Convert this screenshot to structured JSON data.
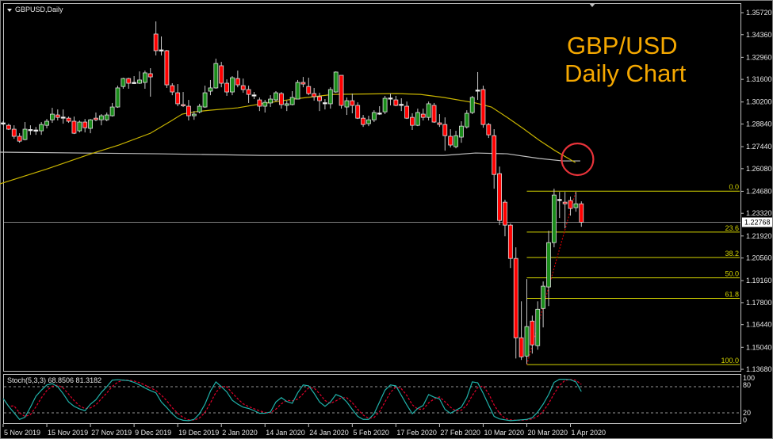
{
  "window": {
    "symbol_label": "GBPUSD,Daily"
  },
  "annotation": {
    "line1": "GBP/USD",
    "line2": "Daily Chart",
    "color": "#f5a800",
    "circle_color": "#e8333a"
  },
  "colors": {
    "bull": "#1a8c1a",
    "bear": "#ff0000",
    "doji": "#ffffff",
    "wick": "#c8c8c8",
    "ma_fast": "#c8b400",
    "ma_slow": "#c0c0c0",
    "fib": "#d4d400",
    "stoch_k": "#20b2aa",
    "stoch_d": "#e0002a"
  },
  "price_axis": {
    "labels": [
      "1.35720",
      "1.34360",
      "1.32960",
      "1.31600",
      "1.30200",
      "1.28840",
      "1.27440",
      "1.26080",
      "1.24680",
      "1.23320",
      "1.21920",
      "1.20560",
      "1.19160",
      "1.17800",
      "1.16440",
      "1.15040",
      "1.13680"
    ],
    "current_price": "1.22768"
  },
  "date_axis": {
    "labels": [
      "5 Nov 2019",
      "15 Nov 2019",
      "27 Nov 2019",
      "9 Dec 2019",
      "19 Dec 2019",
      "2 Jan 2020",
      "14 Jan 2020",
      "24 Jan 2020",
      "5 Feb 2020",
      "17 Feb 2020",
      "27 Feb 2020",
      "10 Mar 2020",
      "20 Mar 2020",
      "1 Apr 2020"
    ],
    "label_bar_index": [
      0,
      8,
      16,
      24,
      32,
      40,
      48,
      56,
      64,
      72,
      80,
      88,
      96,
      104
    ]
  },
  "chart_data": {
    "type": "candlestick",
    "ylim": [
      1.1368,
      1.3572
    ],
    "ohlc_fields": [
      "open",
      "high",
      "low",
      "close"
    ],
    "candles": [
      [
        1.2891,
        1.2901,
        1.2876,
        1.2889
      ],
      [
        1.2876,
        1.2886,
        1.2847,
        1.2852
      ],
      [
        1.2852,
        1.2876,
        1.2793,
        1.2808
      ],
      [
        1.2808,
        1.2827,
        1.2768,
        1.2778
      ],
      [
        1.2788,
        1.2896,
        1.2783,
        1.2852
      ],
      [
        1.285,
        1.2876,
        1.2817,
        1.2847
      ],
      [
        1.2845,
        1.2866,
        1.2817,
        1.2847
      ],
      [
        1.2842,
        1.2896,
        1.2817,
        1.2881
      ],
      [
        1.2876,
        1.2915,
        1.2857,
        1.2901
      ],
      [
        1.291,
        1.2984,
        1.2891,
        1.2945
      ],
      [
        1.294,
        1.2974,
        1.2906,
        1.2925
      ],
      [
        1.2927,
        1.2974,
        1.2886,
        1.2925
      ],
      [
        1.292,
        1.293,
        1.2891,
        1.2901
      ],
      [
        1.2901,
        1.293,
        1.2822,
        1.2827
      ],
      [
        1.2842,
        1.2906,
        1.2832,
        1.2896
      ],
      [
        1.2896,
        1.2915,
        1.2832,
        1.2861
      ],
      [
        1.2857,
        1.2915,
        1.2827,
        1.291
      ],
      [
        1.292,
        1.2955,
        1.2901,
        1.291
      ],
      [
        1.291,
        1.2945,
        1.2876,
        1.2935
      ],
      [
        1.291,
        1.2955,
        1.2901,
        1.294
      ],
      [
        1.2935,
        1.3014,
        1.293,
        1.2989
      ],
      [
        1.2989,
        1.3121,
        1.2984,
        1.3107
      ],
      [
        1.3116,
        1.317,
        1.3102,
        1.3165
      ],
      [
        1.3165,
        1.317,
        1.3102,
        1.3136
      ],
      [
        1.3141,
        1.318,
        1.3131,
        1.3138
      ],
      [
        1.3136,
        1.3209,
        1.3131,
        1.3156
      ],
      [
        1.3141,
        1.3214,
        1.3102,
        1.32
      ],
      [
        1.3195,
        1.3229,
        1.3053,
        1.3175
      ],
      [
        1.344,
        1.3518,
        1.3308,
        1.3337
      ],
      [
        1.334,
        1.3425,
        1.3308,
        1.3342
      ],
      [
        1.3337,
        1.3342,
        1.3107,
        1.3126
      ],
      [
        1.3121,
        1.3136,
        1.3062,
        1.3082
      ],
      [
        1.3077,
        1.3131,
        1.2994,
        1.3009
      ],
      [
        1.3004,
        1.3082,
        1.2989,
        1.2999
      ],
      [
        1.2994,
        1.3033,
        1.2906,
        1.2935
      ],
      [
        1.2935,
        1.2964,
        1.291,
        1.2945
      ],
      [
        1.2959,
        1.3009,
        1.295,
        1.2994
      ],
      [
        1.2989,
        1.3121,
        1.2984,
        1.3077
      ],
      [
        1.3087,
        1.3156,
        1.3062,
        1.3107
      ],
      [
        1.3107,
        1.3288,
        1.3102,
        1.3258
      ],
      [
        1.3244,
        1.3268,
        1.3111,
        1.3136
      ],
      [
        1.3136,
        1.316,
        1.3058,
        1.3082
      ],
      [
        1.3082,
        1.318,
        1.3062,
        1.317
      ],
      [
        1.3165,
        1.3214,
        1.3111,
        1.3126
      ],
      [
        1.3121,
        1.3165,
        1.3077,
        1.3097
      ],
      [
        1.3097,
        1.3121,
        1.3014,
        1.3067
      ],
      [
        1.3064,
        1.3082,
        1.3038,
        1.3062
      ],
      [
        1.3033,
        1.3048,
        1.2964,
        1.2994
      ],
      [
        1.2994,
        1.3033,
        1.2955,
        1.3018
      ],
      [
        1.3014,
        1.3062,
        1.2989,
        1.3038
      ],
      [
        1.3033,
        1.3087,
        1.3023,
        1.3077
      ],
      [
        1.3072,
        1.3082,
        1.2979,
        1.3004
      ],
      [
        1.2999,
        1.3028,
        1.2964,
        1.3009
      ],
      [
        1.3004,
        1.3087,
        1.2999,
        1.3048
      ],
      [
        1.3038,
        1.3156,
        1.3038,
        1.3141
      ],
      [
        1.3141,
        1.3175,
        1.3111,
        1.3131
      ],
      [
        1.3116,
        1.317,
        1.3062,
        1.3072
      ],
      [
        1.3072,
        1.3107,
        1.3028,
        1.3053
      ],
      [
        1.3053,
        1.3077,
        1.2964,
        1.3028
      ],
      [
        1.3016,
        1.3038,
        1.2974,
        1.3014
      ],
      [
        1.3009,
        1.3111,
        1.2979,
        1.3097
      ],
      [
        1.3082,
        1.3209,
        1.3077,
        1.3205
      ],
      [
        1.3185,
        1.3185,
        1.2979,
        1.2999
      ],
      [
        1.2989,
        1.3048,
        1.294,
        1.3028
      ],
      [
        1.3028,
        1.3072,
        1.295,
        1.2999
      ],
      [
        1.2999,
        1.3018,
        1.2915,
        1.292
      ],
      [
        1.292,
        1.294,
        1.2866,
        1.2881
      ],
      [
        1.2886,
        1.2935,
        1.2871,
        1.291
      ],
      [
        1.291,
        1.2969,
        1.2896,
        1.2955
      ],
      [
        1.2952,
        1.2994,
        1.294,
        1.295
      ],
      [
        1.2959,
        1.3058,
        1.2945,
        1.3043
      ],
      [
        1.3045,
        1.3072,
        1.2999,
        1.3043
      ],
      [
        1.3033,
        1.3058,
        1.2994,
        1.2999
      ],
      [
        1.3006,
        1.3043,
        1.2964,
        1.3004
      ],
      [
        1.2994,
        1.3023,
        1.2915,
        1.292
      ],
      [
        1.2925,
        1.295,
        1.2847,
        1.2876
      ],
      [
        1.2876,
        1.2979,
        1.2871,
        1.2955
      ],
      [
        1.2945,
        1.2979,
        1.2906,
        1.2925
      ],
      [
        1.2925,
        1.3023,
        1.2906,
        1.3009
      ],
      [
        1.2999,
        1.3014,
        1.2891,
        1.2896
      ],
      [
        1.2891,
        1.2945,
        1.2866,
        1.2881
      ],
      [
        1.2881,
        1.2925,
        1.2719,
        1.2812
      ],
      [
        1.2808,
        1.2852,
        1.2739,
        1.2754
      ],
      [
        1.2744,
        1.2842,
        1.2734,
        1.2812
      ],
      [
        1.2803,
        1.2901,
        1.2768,
        1.2871
      ],
      [
        1.2866,
        1.2969,
        1.2856,
        1.295
      ],
      [
        1.2955,
        1.3058,
        1.2945,
        1.3048
      ],
      [
        1.3094,
        1.3205,
        1.3033,
        1.3092
      ],
      [
        1.3097,
        1.3121,
        1.2861,
        1.2881
      ],
      [
        1.2881,
        1.2891,
        1.2798,
        1.2817
      ],
      [
        1.2812,
        1.2852,
        1.2484,
        1.2572
      ],
      [
        1.2577,
        1.2621,
        1.2259,
        1.2288
      ],
      [
        1.2401,
        1.2416,
        1.219,
        1.2259
      ],
      [
        1.2259,
        1.2269,
        1.1994,
        1.2053
      ],
      [
        1.2053,
        1.2122,
        1.1435,
        1.1563
      ],
      [
        1.1563,
        1.1788,
        1.1426,
        1.1445
      ],
      [
        1.145,
        1.1926,
        1.1401,
        1.1632
      ],
      [
        1.1666,
        1.17,
        1.1465,
        1.1519
      ],
      [
        1.1514,
        1.1788,
        1.1489,
        1.1739
      ],
      [
        1.1744,
        1.1911,
        1.1627,
        1.1882
      ],
      [
        1.1877,
        1.2224,
        1.1759,
        1.2151
      ],
      [
        1.2151,
        1.2484,
        1.2122,
        1.2445
      ],
      [
        1.2418,
        1.2464,
        1.2303,
        1.2416
      ],
      [
        1.2401,
        1.2464,
        1.2239,
        1.2391
      ],
      [
        1.2411,
        1.2435,
        1.2318,
        1.2362
      ],
      [
        1.2367,
        1.2464,
        1.2342,
        1.2391
      ],
      [
        1.2391,
        1.2406,
        1.2249,
        1.2277
      ]
    ],
    "ma_fast_points": [
      [
        -0.6,
        1.2514
      ],
      [
        8.1,
        1.2607
      ],
      [
        16.1,
        1.27
      ],
      [
        21.2,
        1.2754
      ],
      [
        27,
        1.2827
      ],
      [
        30.7,
        1.2901
      ],
      [
        32.8,
        1.2945
      ],
      [
        35,
        1.2959
      ],
      [
        37.9,
        1.2969
      ],
      [
        43,
        1.2984
      ],
      [
        47.4,
        1.3009
      ],
      [
        53.2,
        1.3038
      ],
      [
        60.5,
        1.3067
      ],
      [
        72.1,
        1.3072
      ],
      [
        76.5,
        1.3067
      ],
      [
        80.8,
        1.3048
      ],
      [
        86.6,
        1.3014
      ],
      [
        89.5,
        1.2989
      ],
      [
        92.4,
        1.2925
      ],
      [
        95.3,
        1.2857
      ],
      [
        98.3,
        1.2783
      ],
      [
        101.2,
        1.2719
      ],
      [
        104.9,
        1.2646
      ]
    ],
    "ma_slow_points": [
      [
        -0.6,
        1.271
      ],
      [
        14,
        1.2705
      ],
      [
        28.5,
        1.27
      ],
      [
        47.4,
        1.269
      ],
      [
        64.8,
        1.269
      ],
      [
        80.8,
        1.269
      ],
      [
        86.6,
        1.2705
      ],
      [
        92.4,
        1.27
      ],
      [
        98.3,
        1.2671
      ],
      [
        102.6,
        1.2656
      ],
      [
        105.8,
        1.2656
      ]
    ],
    "fibonacci": {
      "high": 1.2469,
      "low": 1.1397,
      "start_bar": 96,
      "trend_from_bar": 96,
      "trend_to_bar": 105,
      "levels": [
        0.0,
        23.6,
        38.2,
        50.0,
        61.8,
        100.0
      ],
      "level_labels": [
        "0.0",
        "23.6",
        "38.2",
        "50.0",
        "61.8",
        "100.0"
      ]
    },
    "highlight_circle_bar": 105
  },
  "stochastic": {
    "label": "Stoch(5,3,3) 68.8506 81.3182",
    "ylim": [
      0,
      100
    ],
    "levels": [
      80,
      20
    ],
    "axis_labels": [
      "100",
      "80",
      "20",
      "0"
    ],
    "k": [
      53,
      35,
      20,
      5,
      10,
      33,
      58,
      72,
      84,
      87,
      80,
      64,
      45,
      35,
      29,
      25,
      40,
      50,
      67,
      80,
      95,
      96,
      95,
      94,
      90,
      84,
      77,
      71,
      66,
      45,
      32,
      18,
      7,
      3,
      2,
      5,
      18,
      40,
      70,
      91,
      80,
      68,
      49,
      40,
      33,
      30,
      25,
      19,
      19,
      22,
      45,
      55,
      46,
      42,
      66,
      84,
      82,
      65,
      45,
      35,
      45,
      62,
      57,
      45,
      28,
      12,
      5,
      5,
      18,
      45,
      72,
      84,
      82,
      60,
      38,
      18,
      30,
      37,
      62,
      56,
      52,
      28,
      19,
      26,
      33,
      55,
      91,
      89,
      65,
      38,
      12,
      6,
      4,
      2,
      3,
      4,
      5,
      9,
      22,
      40,
      62,
      90,
      97,
      97,
      96,
      91,
      68.85
    ]
  }
}
